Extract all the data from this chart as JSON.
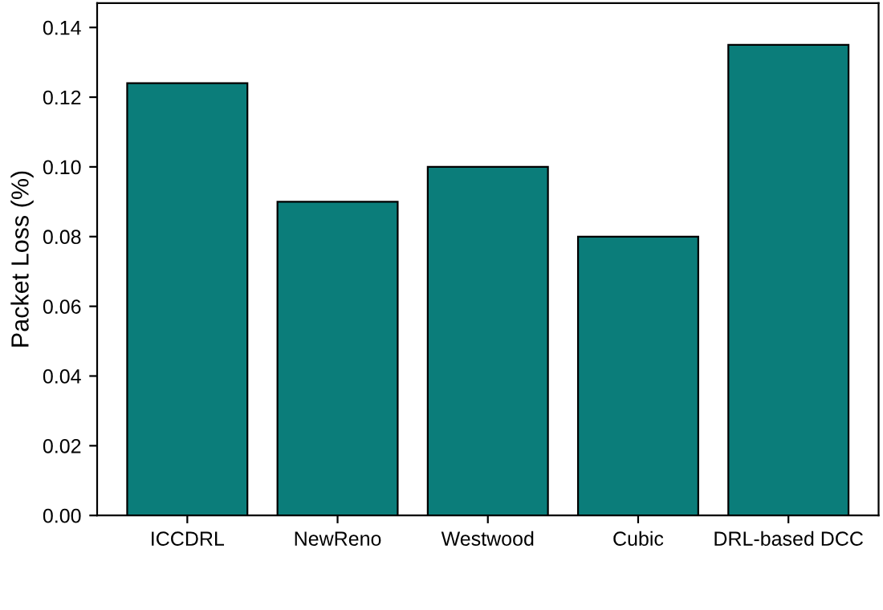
{
  "chart_data": {
    "type": "bar",
    "ylabel": "Packet Loss (%)",
    "categories": [
      "ICCDRL",
      "NewReno",
      "Westwood",
      "Cubic",
      "DRL-based DCC"
    ],
    "values": [
      0.124,
      0.09,
      0.1,
      0.08,
      0.135
    ],
    "color": "#0b7d7a",
    "ylim": [
      0,
      0.147
    ],
    "yticks": [
      {
        "value": 0,
        "label": "0.00"
      },
      {
        "value": 0.02,
        "label": "0.02"
      },
      {
        "value": 0.04,
        "label": "0.04"
      },
      {
        "value": 0.06,
        "label": "0.06"
      },
      {
        "value": 0.08,
        "label": "0.08"
      },
      {
        "value": 0.1,
        "label": "0.10"
      },
      {
        "value": 0.12,
        "label": "0.12"
      },
      {
        "value": 0.14,
        "label": "0.14"
      }
    ],
    "grid": false,
    "legend": false
  }
}
